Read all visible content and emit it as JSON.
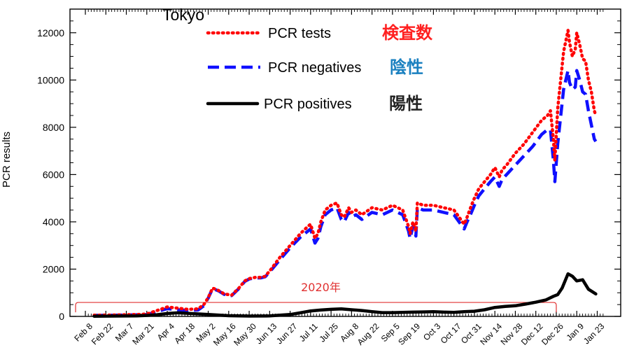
{
  "chart_data": {
    "type": "line",
    "title": "Tokyo",
    "ylabel": "PCR results",
    "xlabel": "",
    "ylim": [
      0,
      13000
    ],
    "yticks": [
      0,
      2000,
      4000,
      6000,
      8000,
      10000,
      12000
    ],
    "x_tick_labels": [
      "Feb 8",
      "Feb 22",
      "Mar 7",
      "Mar 21",
      "Apr 4",
      "Apr 18",
      "May 2",
      "May 16",
      "May 30",
      "Jun 13",
      "Jun 27",
      "Jul 11",
      "Jul 25",
      "Aug 8",
      "Aug 22",
      "Sep 5",
      "Sep 19",
      "Oct 3",
      "Oct 17",
      "Oct 31",
      "Nov 14",
      "Nov 28",
      "Dec 12",
      "Dec 26",
      "Jan 9",
      "Jan 23"
    ],
    "x_tick_days": [
      0,
      14,
      28,
      42,
      56,
      70,
      84,
      98,
      112,
      126,
      140,
      154,
      168,
      182,
      196,
      210,
      224,
      238,
      252,
      266,
      280,
      294,
      308,
      322,
      336,
      350
    ],
    "xlim": [
      0,
      350
    ],
    "legend_placement": "top-left",
    "grid": false,
    "series": [
      {
        "name": "PCR tests",
        "name_jp": "検査数",
        "color": "#ff0000",
        "jp_color": "#ff2020",
        "style": "dotted",
        "x": [
          6,
          20,
          35,
          42,
          49,
          56,
          63,
          70,
          77,
          81,
          84,
          87,
          91,
          95,
          100,
          105,
          109,
          112,
          116,
          120,
          123,
          127,
          133,
          140,
          147,
          152,
          154,
          157,
          159,
          161,
          164,
          168,
          172,
          175,
          177,
          180,
          182,
          185,
          189,
          196,
          203,
          210,
          217,
          221,
          222,
          224,
          226,
          227,
          231,
          238,
          245,
          252,
          259,
          261,
          264,
          266,
          269,
          273,
          277,
          280,
          283,
          285,
          288,
          294,
          300,
          306,
          312,
          316,
          318,
          320,
          321,
          323,
          327,
          330,
          331,
          333,
          335,
          336,
          338,
          340,
          342,
          344,
          346,
          348,
          349
        ],
        "y": [
          50,
          60,
          80,
          100,
          250,
          400,
          350,
          300,
          320,
          500,
          800,
          1200,
          1100,
          950,
          900,
          1200,
          1500,
          1600,
          1650,
          1650,
          1700,
          2000,
          2500,
          3000,
          3500,
          3800,
          3900,
          3300,
          3500,
          4000,
          4500,
          4700,
          4800,
          4300,
          4200,
          4600,
          4400,
          4500,
          4300,
          4600,
          4500,
          4700,
          4500,
          3800,
          3500,
          4000,
          3600,
          4800,
          4700,
          4700,
          4600,
          4500,
          3900,
          4200,
          4700,
          5000,
          5400,
          5700,
          6000,
          6300,
          5900,
          6200,
          6400,
          6900,
          7300,
          7800,
          8300,
          8500,
          8700,
          7500,
          6600,
          8800,
          11200,
          12100,
          11600,
          11000,
          11300,
          12000,
          11500,
          10900,
          10800,
          10000,
          9500,
          8700,
          8500
        ]
      },
      {
        "name": "PCR negatives",
        "name_jp": "陰性",
        "color": "#1010ff",
        "jp_color": "#1a80c0",
        "style": "dashed",
        "x": [
          6,
          20,
          35,
          42,
          49,
          56,
          63,
          70,
          77,
          81,
          84,
          87,
          91,
          95,
          100,
          105,
          109,
          112,
          116,
          120,
          123,
          127,
          133,
          140,
          147,
          152,
          154,
          157,
          159,
          161,
          164,
          168,
          172,
          175,
          177,
          180,
          182,
          185,
          189,
          196,
          203,
          210,
          217,
          221,
          222,
          224,
          226,
          227,
          231,
          238,
          245,
          252,
          259,
          261,
          264,
          266,
          269,
          273,
          277,
          280,
          283,
          285,
          288,
          294,
          300,
          306,
          312,
          316,
          318,
          320,
          321,
          323,
          327,
          330,
          331,
          333,
          335,
          336,
          338,
          340,
          342,
          344,
          346,
          348,
          349
        ],
        "y": [
          40,
          50,
          70,
          80,
          200,
          330,
          280,
          250,
          270,
          450,
          780,
          1180,
          1080,
          930,
          880,
          1180,
          1480,
          1580,
          1630,
          1630,
          1680,
          1950,
          2400,
          2900,
          3350,
          3600,
          3700,
          3100,
          3300,
          3800,
          4300,
          4500,
          4600,
          4100,
          4000,
          4400,
          4200,
          4300,
          4100,
          4400,
          4300,
          4500,
          4300,
          3600,
          3300,
          3800,
          3400,
          4600,
          4500,
          4500,
          4400,
          4300,
          3700,
          4000,
          4400,
          4700,
          5100,
          5400,
          5700,
          5900,
          5500,
          5800,
          6000,
          6400,
          6800,
          7200,
          7700,
          7900,
          7900,
          6600,
          5700,
          7300,
          9600,
          10400,
          9900,
          9600,
          9700,
          10400,
          10000,
          9500,
          9400,
          8700,
          8100,
          7500,
          7400
        ]
      },
      {
        "name": "PCR positives",
        "name_jp": "陽性",
        "color": "#000000",
        "jp_color": "#222222",
        "style": "solid",
        "x": [
          6,
          20,
          35,
          42,
          49,
          56,
          63,
          70,
          84,
          98,
          112,
          126,
          140,
          147,
          154,
          161,
          168,
          175,
          182,
          189,
          196,
          203,
          210,
          217,
          224,
          231,
          238,
          245,
          252,
          259,
          266,
          273,
          280,
          287,
          294,
          301,
          308,
          315,
          320,
          323,
          326,
          330,
          333,
          336,
          340,
          344,
          349
        ],
        "y": [
          10,
          15,
          25,
          40,
          70,
          120,
          150,
          130,
          80,
          30,
          15,
          20,
          80,
          150,
          230,
          270,
          300,
          320,
          280,
          250,
          200,
          160,
          160,
          170,
          180,
          190,
          200,
          180,
          170,
          200,
          220,
          280,
          380,
          420,
          450,
          520,
          600,
          700,
          850,
          920,
          1200,
          1800,
          1700,
          1500,
          1550,
          1150,
          950
        ]
      }
    ],
    "annotation": {
      "label": "2020年",
      "x_start": 0,
      "x_end": 322,
      "y": 590,
      "color": "#e03030"
    }
  }
}
